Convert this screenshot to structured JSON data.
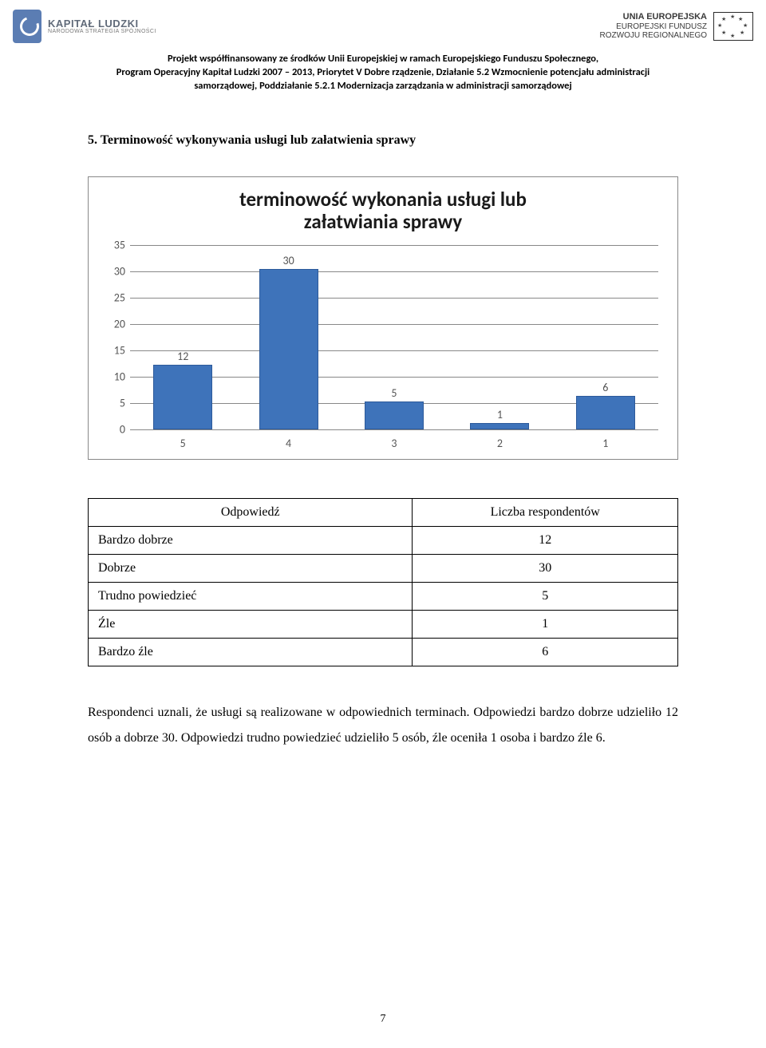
{
  "header": {
    "left_logo": {
      "title": "KAPITAŁ LUDZKI",
      "subtitle": "NARODOWA STRATEGIA SPÓJNOŚCI"
    },
    "right_logo": {
      "line1": "UNIA EUROPEJSKA",
      "line2": "EUROPEJSKI FUNDUSZ",
      "line3": "ROZWOJU REGIONALNEGO"
    }
  },
  "funding_text": {
    "l1": "Projekt współfinansowany ze środków Unii Europejskiej w ramach Europejskiego Funduszu Społecznego,",
    "l2": "Program Operacyjny Kapitał Ludzki 2007 – 2013, Priorytet V Dobre rządzenie, Działanie 5.2 Wzmocnienie potencjału administracji",
    "l3": "samorządowej, Poddziałanie 5.2.1 Modernizacja zarządzania w administracji samorządowej"
  },
  "section_heading": "5. Terminowość wykonywania usługi lub załatwienia sprawy",
  "chart": {
    "type": "bar",
    "title": "terminowość wykonania usługi lub załatwiania sprawy",
    "categories": [
      "5",
      "4",
      "3",
      "2",
      "1"
    ],
    "values": [
      12,
      30,
      5,
      1,
      6
    ],
    "bar_color": "#3e73ba",
    "bar_border": "#2d5a9a",
    "ymax": 35,
    "ytick_step": 5,
    "grid_color": "#888888",
    "axis_font": "Calibri",
    "axis_fontsize": 14,
    "title_fontsize": 25,
    "background_color": "#ffffff"
  },
  "table": {
    "columns": [
      "Odpowiedź",
      "Liczba respondentów"
    ],
    "rows": [
      [
        "Bardzo dobrze",
        "12"
      ],
      [
        "Dobrze",
        "30"
      ],
      [
        "Trudno powiedzieć",
        "5"
      ],
      [
        "Źle",
        "1"
      ],
      [
        "Bardzo źle",
        "6"
      ]
    ]
  },
  "paragraph": "Respondenci uznali, że usługi są realizowane w odpowiednich terminach.  Odpowiedzi bardzo dobrze udzieliło 12 osób a dobrze 30. Odpowiedzi trudno powiedzieć udzieliło 5 osób, źle oceniła 1 osoba i bardzo źle 6.",
  "page_number": "7"
}
